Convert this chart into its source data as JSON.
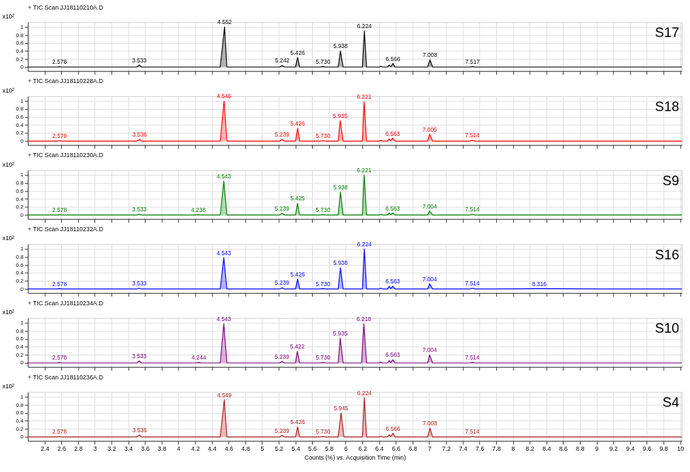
{
  "chart_data": [
    {
      "type": "area",
      "title": "+ TIC Scan JJ18110210A.D",
      "ylabel": "x10²",
      "xlim": [
        2.2,
        10.02
      ],
      "ylim": [
        -0.1,
        1.12
      ],
      "yticks": [
        0,
        0.2,
        0.4,
        0.6,
        0.8,
        1
      ],
      "xticks": [
        2.4,
        2.6,
        2.8,
        3,
        3.2,
        3.4,
        3.6,
        3.8,
        4,
        4.2,
        4.4,
        4.6,
        4.8,
        5,
        5.2,
        5.4,
        5.6,
        5.8,
        6,
        6.2,
        6.4,
        6.6,
        6.8,
        7,
        7.2,
        7.4,
        7.6,
        7.8,
        8,
        8.2,
        8.4,
        8.6,
        8.8,
        9,
        9.2,
        9.4,
        9.6,
        9.8,
        10
      ],
      "grid": true,
      "tick_labels": "y",
      "series": [
        {
          "name": "S17",
          "color": "#000000",
          "x": [
            2.2,
            2.55,
            2.578,
            2.61,
            3.5,
            3.533,
            3.56,
            4.5,
            4.552,
            4.58,
            5.21,
            5.242,
            5.27,
            5.4,
            5.426,
            5.45,
            5.69,
            5.73,
            5.77,
            5.91,
            5.938,
            5.97,
            6.2,
            6.224,
            6.25,
            6.4,
            6.42,
            6.44,
            6.5,
            6.52,
            6.54,
            6.566,
            6.59,
            6.98,
            7.008,
            7.04,
            7.49,
            7.517,
            7.55,
            10.02
          ],
          "values": [
            0,
            0,
            0.01,
            0,
            0,
            0.05,
            0,
            0,
            1,
            0,
            0,
            0.04,
            0,
            0,
            0.24,
            0,
            0,
            0.01,
            0,
            0,
            0.4,
            0,
            0,
            0.9,
            0,
            0,
            0.02,
            0,
            0,
            0.05,
            0.01,
            0.09,
            0,
            0,
            0.18,
            0,
            0,
            0.01,
            0,
            0
          ]
        }
      ],
      "annotations": [
        {
          "text": "2.578",
          "x": 2.578,
          "y": 0.01
        },
        {
          "text": "3.533",
          "x": 3.533,
          "y": 0.05
        },
        {
          "text": "4.552",
          "x": 4.552,
          "y": 1
        },
        {
          "text": "5.242",
          "x": 5.242,
          "y": 0.04
        },
        {
          "text": "5.426",
          "x": 5.426,
          "y": 0.24
        },
        {
          "text": "5.730",
          "x": 5.73,
          "y": 0.01
        },
        {
          "text": "5.938",
          "x": 5.938,
          "y": 0.4
        },
        {
          "text": "6.224",
          "x": 6.224,
          "y": 0.9
        },
        {
          "text": "6.566",
          "x": 6.566,
          "y": 0.09
        },
        {
          "text": "7.008",
          "x": 7.008,
          "y": 0.18
        },
        {
          "text": "7.517",
          "x": 7.517,
          "y": 0.01
        }
      ]
    },
    {
      "type": "area",
      "title": "+ TIC Scan JJ18110228A.D",
      "ylabel": "x10²",
      "xlim": [
        2.2,
        10.02
      ],
      "ylim": [
        -0.1,
        1.12
      ],
      "yticks": [
        0,
        0.2,
        0.4,
        0.6,
        0.8,
        1
      ],
      "xticks": [
        2.4,
        2.6,
        2.8,
        3,
        3.2,
        3.4,
        3.6,
        3.8,
        4,
        4.2,
        4.4,
        4.6,
        4.8,
        5,
        5.2,
        5.4,
        5.6,
        5.8,
        6,
        6.2,
        6.4,
        6.6,
        6.8,
        7,
        7.2,
        7.4,
        7.6,
        7.8,
        8,
        8.2,
        8.4,
        8.6,
        8.8,
        9,
        9.2,
        9.4,
        9.6,
        9.8,
        10
      ],
      "grid": true,
      "tick_labels": "y",
      "series": [
        {
          "name": "S18",
          "color": "#ff0000",
          "x": [
            2.2,
            2.55,
            2.579,
            2.61,
            3.5,
            3.536,
            3.56,
            4.5,
            4.546,
            4.58,
            5.21,
            5.239,
            5.27,
            5.4,
            5.426,
            5.45,
            5.69,
            5.73,
            5.77,
            5.91,
            5.935,
            5.97,
            6.2,
            6.221,
            6.25,
            6.4,
            6.42,
            6.44,
            6.5,
            6.52,
            6.54,
            6.563,
            6.59,
            6.98,
            7.005,
            7.04,
            7.49,
            7.514,
            7.55,
            10.02
          ],
          "values": [
            0,
            0,
            0.01,
            0,
            0,
            0.04,
            0,
            0,
            1,
            0,
            0,
            0.04,
            0,
            0,
            0.32,
            0,
            0,
            0.01,
            0,
            0,
            0.51,
            0,
            0,
            0.98,
            0,
            0,
            0.02,
            0,
            0,
            0.05,
            0.01,
            0.07,
            0,
            0,
            0.17,
            0,
            0,
            0.02,
            0,
            0
          ]
        }
      ],
      "annotations": [
        {
          "text": "2.579",
          "x": 2.579,
          "y": 0.01
        },
        {
          "text": "3.536",
          "x": 3.536,
          "y": 0.04
        },
        {
          "text": "4.546",
          "x": 4.546,
          "y": 1
        },
        {
          "text": "5.239",
          "x": 5.239,
          "y": 0.04
        },
        {
          "text": "5.426",
          "x": 5.426,
          "y": 0.32
        },
        {
          "text": "5.730",
          "x": 5.73,
          "y": 0.01
        },
        {
          "text": "5.935",
          "x": 5.935,
          "y": 0.51
        },
        {
          "text": "6.221",
          "x": 6.221,
          "y": 0.98
        },
        {
          "text": "6.563",
          "x": 6.563,
          "y": 0.07
        },
        {
          "text": "7.005",
          "x": 7.005,
          "y": 0.17
        },
        {
          "text": "7.514",
          "x": 7.514,
          "y": 0.02
        }
      ]
    },
    {
      "type": "area",
      "title": "+ TIC Scan JJ18110230A.D",
      "ylabel": "x10²",
      "xlim": [
        2.2,
        10.02
      ],
      "ylim": [
        -0.1,
        1.12
      ],
      "yticks": [
        0,
        0.2,
        0.4,
        0.6,
        0.8,
        1
      ],
      "xticks": [
        2.4,
        2.6,
        2.8,
        3,
        3.2,
        3.4,
        3.6,
        3.8,
        4,
        4.2,
        4.4,
        4.6,
        4.8,
        5,
        5.2,
        5.4,
        5.6,
        5.8,
        6,
        6.2,
        6.4,
        6.6,
        6.8,
        7,
        7.2,
        7.4,
        7.6,
        7.8,
        8,
        8.2,
        8.4,
        8.6,
        8.8,
        9,
        9.2,
        9.4,
        9.6,
        9.8,
        10
      ],
      "grid": true,
      "tick_labels": "y",
      "series": [
        {
          "name": "S9",
          "color": "#008000",
          "x": [
            2.2,
            2.55,
            2.578,
            2.61,
            3.5,
            3.533,
            3.56,
            4.2,
            4.238,
            4.28,
            4.5,
            4.543,
            4.58,
            5.21,
            5.239,
            5.27,
            5.4,
            5.425,
            5.45,
            5.69,
            5.73,
            5.77,
            5.91,
            5.938,
            5.97,
            6.2,
            6.221,
            6.25,
            6.4,
            6.42,
            6.44,
            6.5,
            6.52,
            6.54,
            6.563,
            6.59,
            6.98,
            7.004,
            7.04,
            7.49,
            7.514,
            7.55,
            10.02
          ],
          "values": [
            0,
            0,
            0.01,
            0,
            0,
            0.02,
            0,
            0,
            0.01,
            0,
            0,
            0.85,
            0,
            0,
            0.04,
            0,
            0,
            0.29,
            0,
            0,
            0.01,
            0,
            0,
            0.57,
            0,
            0,
            1,
            0,
            0,
            0.02,
            0,
            0,
            0.05,
            0.01,
            0.05,
            0,
            0,
            0.1,
            0,
            0,
            0.02,
            0,
            0
          ]
        }
      ],
      "annotations": [
        {
          "text": "2.578",
          "x": 2.578,
          "y": 0.01
        },
        {
          "text": "3.533",
          "x": 3.533,
          "y": 0.02
        },
        {
          "text": "4.238",
          "x": 4.238,
          "y": 0.01
        },
        {
          "text": "4.543",
          "x": 4.543,
          "y": 0.85
        },
        {
          "text": "5.239",
          "x": 5.239,
          "y": 0.04
        },
        {
          "text": "5.425",
          "x": 5.425,
          "y": 0.29
        },
        {
          "text": "5.730",
          "x": 5.73,
          "y": 0.01
        },
        {
          "text": "5.938",
          "x": 5.938,
          "y": 0.57
        },
        {
          "text": "6.221",
          "x": 6.221,
          "y": 1
        },
        {
          "text": "6.563",
          "x": 6.563,
          "y": 0.05
        },
        {
          "text": "7.004",
          "x": 7.004,
          "y": 0.1
        },
        {
          "text": "7.514",
          "x": 7.514,
          "y": 0.02
        }
      ]
    },
    {
      "type": "area",
      "title": "+ TIC Scan JJ18110232A.D",
      "ylabel": "x10²",
      "xlim": [
        2.2,
        10.02
      ],
      "ylim": [
        -0.1,
        1.12
      ],
      "yticks": [
        0,
        0.2,
        0.4,
        0.6,
        0.8,
        1
      ],
      "xticks": [
        2.4,
        2.6,
        2.8,
        3,
        3.2,
        3.4,
        3.6,
        3.8,
        4,
        4.2,
        4.4,
        4.6,
        4.8,
        5,
        5.2,
        5.4,
        5.6,
        5.8,
        6,
        6.2,
        6.4,
        6.6,
        6.8,
        7,
        7.2,
        7.4,
        7.6,
        7.8,
        8,
        8.2,
        8.4,
        8.6,
        8.8,
        9,
        9.2,
        9.4,
        9.6,
        9.8,
        10
      ],
      "grid": true,
      "tick_labels": "y",
      "series": [
        {
          "name": "S16",
          "color": "#0000ff",
          "x": [
            2.2,
            2.55,
            2.578,
            2.61,
            3.5,
            3.533,
            3.56,
            4.5,
            4.543,
            4.58,
            5.21,
            5.239,
            5.27,
            5.4,
            5.426,
            5.45,
            5.69,
            5.73,
            5.77,
            5.91,
            5.938,
            5.97,
            6.2,
            6.224,
            6.25,
            6.4,
            6.42,
            6.44,
            6.5,
            6.52,
            6.54,
            6.563,
            6.59,
            6.98,
            7.004,
            7.04,
            7.49,
            7.514,
            7.55,
            7.8,
            8.316,
            9.05,
            10.02
          ],
          "values": [
            0,
            0,
            0.01,
            0,
            0,
            0.02,
            0,
            0,
            0.78,
            0,
            0,
            0.03,
            0,
            0,
            0.25,
            0,
            0,
            0.01,
            0,
            0,
            0.53,
            0,
            0,
            1,
            0,
            0,
            0.02,
            0,
            0,
            0.06,
            0.01,
            0.07,
            0,
            0,
            0.13,
            0,
            0,
            0.02,
            0,
            0,
            0.01,
            0,
            0
          ]
        }
      ],
      "annotations": [
        {
          "text": "2.578",
          "x": 2.578,
          "y": 0.01
        },
        {
          "text": "3.533",
          "x": 3.533,
          "y": 0.02
        },
        {
          "text": "4.543",
          "x": 4.543,
          "y": 0.78
        },
        {
          "text": "5.239",
          "x": 5.239,
          "y": 0.03
        },
        {
          "text": "5.426",
          "x": 5.426,
          "y": 0.25
        },
        {
          "text": "5.730",
          "x": 5.73,
          "y": 0.01
        },
        {
          "text": "5.938",
          "x": 5.938,
          "y": 0.53
        },
        {
          "text": "6.224",
          "x": 6.224,
          "y": 1
        },
        {
          "text": "6.563",
          "x": 6.563,
          "y": 0.07
        },
        {
          "text": "7.004",
          "x": 7.004,
          "y": 0.13
        },
        {
          "text": "7.514",
          "x": 7.514,
          "y": 0.02
        },
        {
          "text": "8.316",
          "x": 8.316,
          "y": 0.01
        }
      ]
    },
    {
      "type": "area",
      "title": "+ TIC Scan JJ18110234A.D",
      "ylabel": "x10²",
      "xlim": [
        2.2,
        10.02
      ],
      "ylim": [
        -0.1,
        1.12
      ],
      "yticks": [
        0,
        0.2,
        0.4,
        0.6,
        0.8,
        1
      ],
      "xticks": [
        2.4,
        2.6,
        2.8,
        3,
        3.2,
        3.4,
        3.6,
        3.8,
        4,
        4.2,
        4.4,
        4.6,
        4.8,
        5,
        5.2,
        5.4,
        5.6,
        5.8,
        6,
        6.2,
        6.4,
        6.6,
        6.8,
        7,
        7.2,
        7.4,
        7.6,
        7.8,
        8,
        8.2,
        8.4,
        8.6,
        8.8,
        9,
        9.2,
        9.4,
        9.6,
        9.8,
        10
      ],
      "grid": true,
      "tick_labels": "y",
      "series": [
        {
          "name": "S10",
          "color": "#800080",
          "x": [
            2.2,
            2.55,
            2.578,
            2.61,
            3.5,
            3.533,
            3.56,
            4.2,
            4.244,
            4.28,
            4.5,
            4.543,
            4.58,
            5.21,
            5.239,
            5.27,
            5.4,
            5.422,
            5.45,
            5.69,
            5.73,
            5.77,
            5.91,
            5.935,
            5.97,
            6.19,
            6.218,
            6.25,
            6.4,
            6.42,
            6.44,
            6.5,
            6.52,
            6.54,
            6.563,
            6.59,
            6.98,
            7.004,
            7.04,
            7.49,
            7.514,
            7.55,
            10.02
          ],
          "values": [
            0,
            0,
            0.01,
            0,
            0,
            0.05,
            0,
            0,
            0.01,
            0,
            0,
            0.98,
            0,
            0,
            0.04,
            0,
            0,
            0.29,
            0,
            0,
            0.01,
            0,
            0,
            0.62,
            0,
            0,
            0.98,
            0,
            0,
            0.02,
            0,
            0,
            0.06,
            0.01,
            0.08,
            0,
            0,
            0.2,
            0,
            0,
            0.01,
            0,
            0
          ]
        }
      ],
      "annotations": [
        {
          "text": "2.578",
          "x": 2.578,
          "y": 0.01
        },
        {
          "text": "3.533",
          "x": 3.533,
          "y": 0.05
        },
        {
          "text": "4.244",
          "x": 4.244,
          "y": 0.01
        },
        {
          "text": "4.543",
          "x": 4.543,
          "y": 0.98
        },
        {
          "text": "5.239",
          "x": 5.239,
          "y": 0.04
        },
        {
          "text": "5.422",
          "x": 5.422,
          "y": 0.29
        },
        {
          "text": "5.730",
          "x": 5.73,
          "y": 0.01
        },
        {
          "text": "5.935",
          "x": 5.935,
          "y": 0.62
        },
        {
          "text": "6.218",
          "x": 6.218,
          "y": 0.98
        },
        {
          "text": "6.563",
          "x": 6.563,
          "y": 0.08
        },
        {
          "text": "7.004",
          "x": 7.004,
          "y": 0.2
        },
        {
          "text": "7.514",
          "x": 7.514,
          "y": 0.01
        }
      ]
    },
    {
      "type": "area",
      "title": "+ TIC Scan JJ18110236A.D",
      "ylabel": "x10²",
      "xlabel": "Counts (%) vs. Acquisition Time (min)",
      "xlim": [
        2.2,
        10.02
      ],
      "ylim": [
        -0.1,
        1.12
      ],
      "yticks": [
        0,
        0.2,
        0.4,
        0.6,
        0.8,
        1
      ],
      "xticks": [
        2.4,
        2.6,
        2.8,
        3,
        3.2,
        3.4,
        3.6,
        3.8,
        4,
        4.2,
        4.4,
        4.6,
        4.8,
        5,
        5.2,
        5.4,
        5.6,
        5.8,
        6,
        6.2,
        6.4,
        6.6,
        6.8,
        7,
        7.2,
        7.4,
        7.6,
        7.8,
        8,
        8.2,
        8.4,
        8.6,
        8.8,
        9,
        9.2,
        9.4,
        9.6,
        9.8,
        10
      ],
      "grid": true,
      "series": [
        {
          "name": "S4",
          "color": "#b01c1c",
          "x": [
            2.2,
            2.55,
            2.578,
            2.61,
            3.5,
            3.536,
            3.56,
            4.5,
            4.549,
            4.58,
            5.21,
            5.239,
            5.27,
            5.4,
            5.426,
            5.45,
            5.69,
            5.73,
            5.77,
            5.91,
            5.945,
            5.98,
            6.2,
            6.224,
            6.25,
            6.4,
            6.42,
            6.44,
            6.5,
            6.52,
            6.54,
            6.566,
            6.59,
            6.98,
            7.008,
            7.04,
            7.49,
            7.514,
            7.55,
            10.02
          ],
          "values": [
            0,
            0,
            0.01,
            0,
            0,
            0.05,
            0,
            0,
            0.93,
            0,
            0,
            0.04,
            0,
            0,
            0.25,
            0,
            0,
            0.01,
            0,
            0,
            0.6,
            0,
            0,
            0.98,
            0,
            0,
            0.02,
            0,
            0,
            0.05,
            0.01,
            0.09,
            0,
            0,
            0.22,
            0,
            0,
            0.01,
            0,
            0
          ]
        }
      ],
      "annotations": [
        {
          "text": "2.578",
          "x": 2.578,
          "y": 0.01
        },
        {
          "text": "3.536",
          "x": 3.536,
          "y": 0.05
        },
        {
          "text": "4.549",
          "x": 4.549,
          "y": 0.93
        },
        {
          "text": "5.239",
          "x": 5.239,
          "y": 0.04
        },
        {
          "text": "5.426",
          "x": 5.426,
          "y": 0.25
        },
        {
          "text": "5.730",
          "x": 5.73,
          "y": 0.01
        },
        {
          "text": "5.945",
          "x": 5.945,
          "y": 0.6
        },
        {
          "text": "6.224",
          "x": 6.224,
          "y": 0.98
        },
        {
          "text": "6.566",
          "x": 6.566,
          "y": 0.09
        },
        {
          "text": "7.008",
          "x": 7.008,
          "y": 0.22
        },
        {
          "text": "7.514",
          "x": 7.514,
          "y": 0.01
        }
      ]
    }
  ]
}
